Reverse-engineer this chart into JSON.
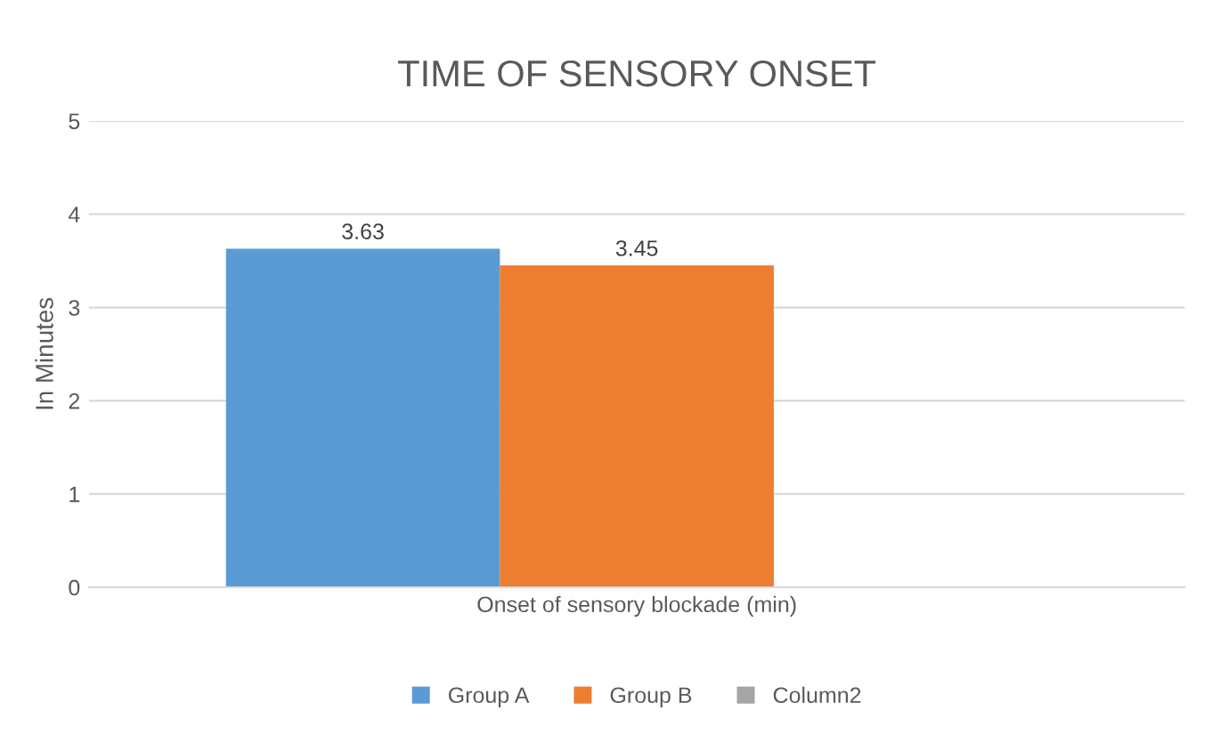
{
  "chart_data": {
    "type": "bar",
    "title": "TIME OF SENSORY ONSET",
    "ylabel": "In Minutes",
    "categories": [
      "Onset of sensory blockade (min)"
    ],
    "series": [
      {
        "name": "Group A",
        "color": "#5b9bd5",
        "values": [
          3.63
        ]
      },
      {
        "name": "Group B",
        "color": "#ed7d31",
        "values": [
          3.45
        ]
      },
      {
        "name": "Column2",
        "color": "#a5a5a5",
        "values": [
          null
        ]
      }
    ],
    "ylim": [
      0,
      5
    ],
    "yticks": [
      0,
      1,
      2,
      3,
      4,
      5
    ],
    "grid": "y",
    "legend": "bottom",
    "data_labels": true
  }
}
